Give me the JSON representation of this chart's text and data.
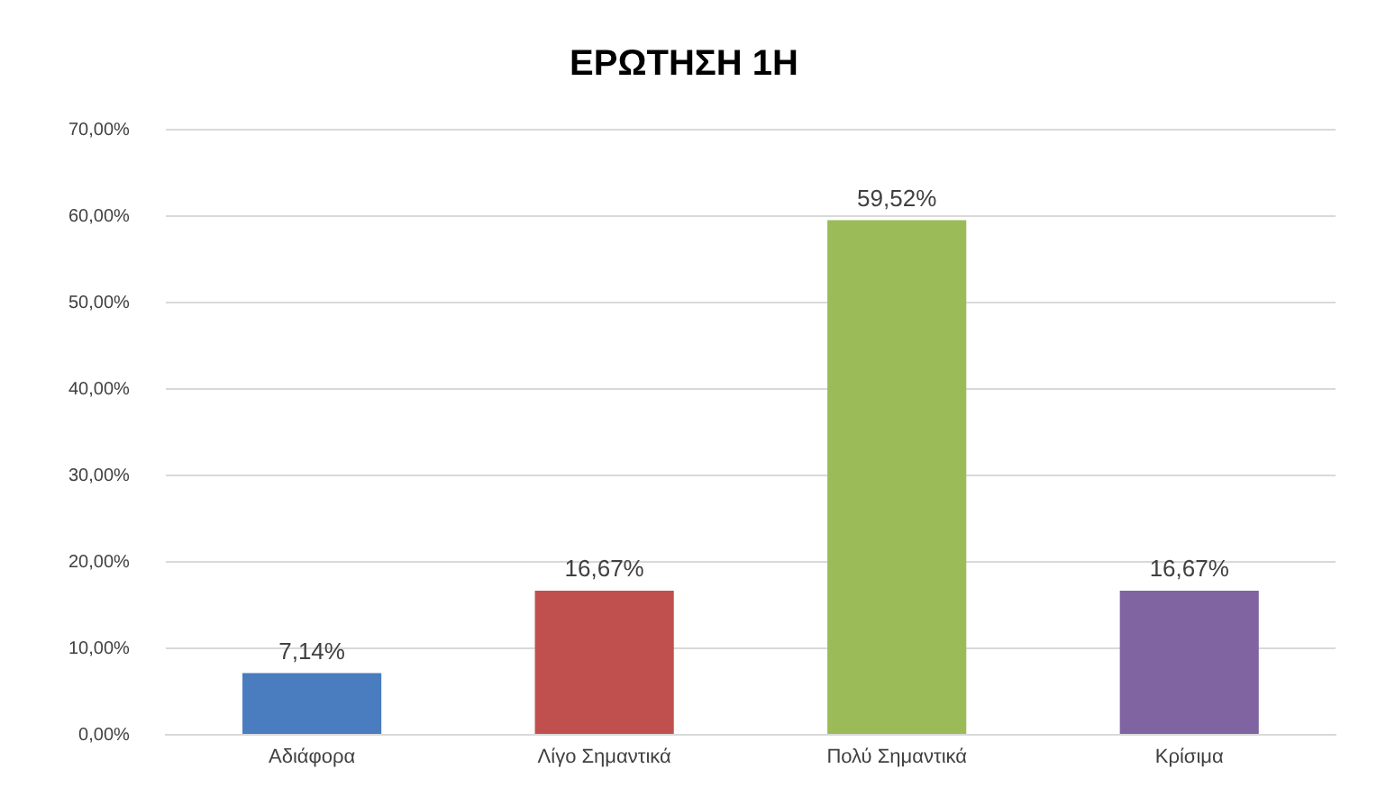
{
  "chart_data": {
    "type": "bar",
    "title": "ΕΡΩΤΗΣΗ 1Η",
    "categories": [
      "Αδιάφορα",
      "Λίγο Σημαντικά",
      "Πολύ Σημαντικά",
      "Κρίσιμα"
    ],
    "values": [
      7.14,
      16.67,
      59.52,
      16.67
    ],
    "colors": [
      "#4a7cc0",
      "#c0504d",
      "#9bbb59",
      "#8064a2"
    ],
    "value_labels": [
      "7,14%",
      "16,67%",
      "59,52%",
      "16,67%"
    ],
    "ylim": [
      0,
      70
    ],
    "yticks": [
      {
        "value": 0,
        "label": "0,00%"
      },
      {
        "value": 10,
        "label": "10,00%"
      },
      {
        "value": 20,
        "label": "20,00%"
      },
      {
        "value": 30,
        "label": "30,00%"
      },
      {
        "value": 40,
        "label": "40,00%"
      },
      {
        "value": 50,
        "label": "50,00%"
      },
      {
        "value": 60,
        "label": "60,00%"
      },
      {
        "value": 70,
        "label": "70,00%"
      }
    ],
    "grid": "y",
    "legend": false
  }
}
